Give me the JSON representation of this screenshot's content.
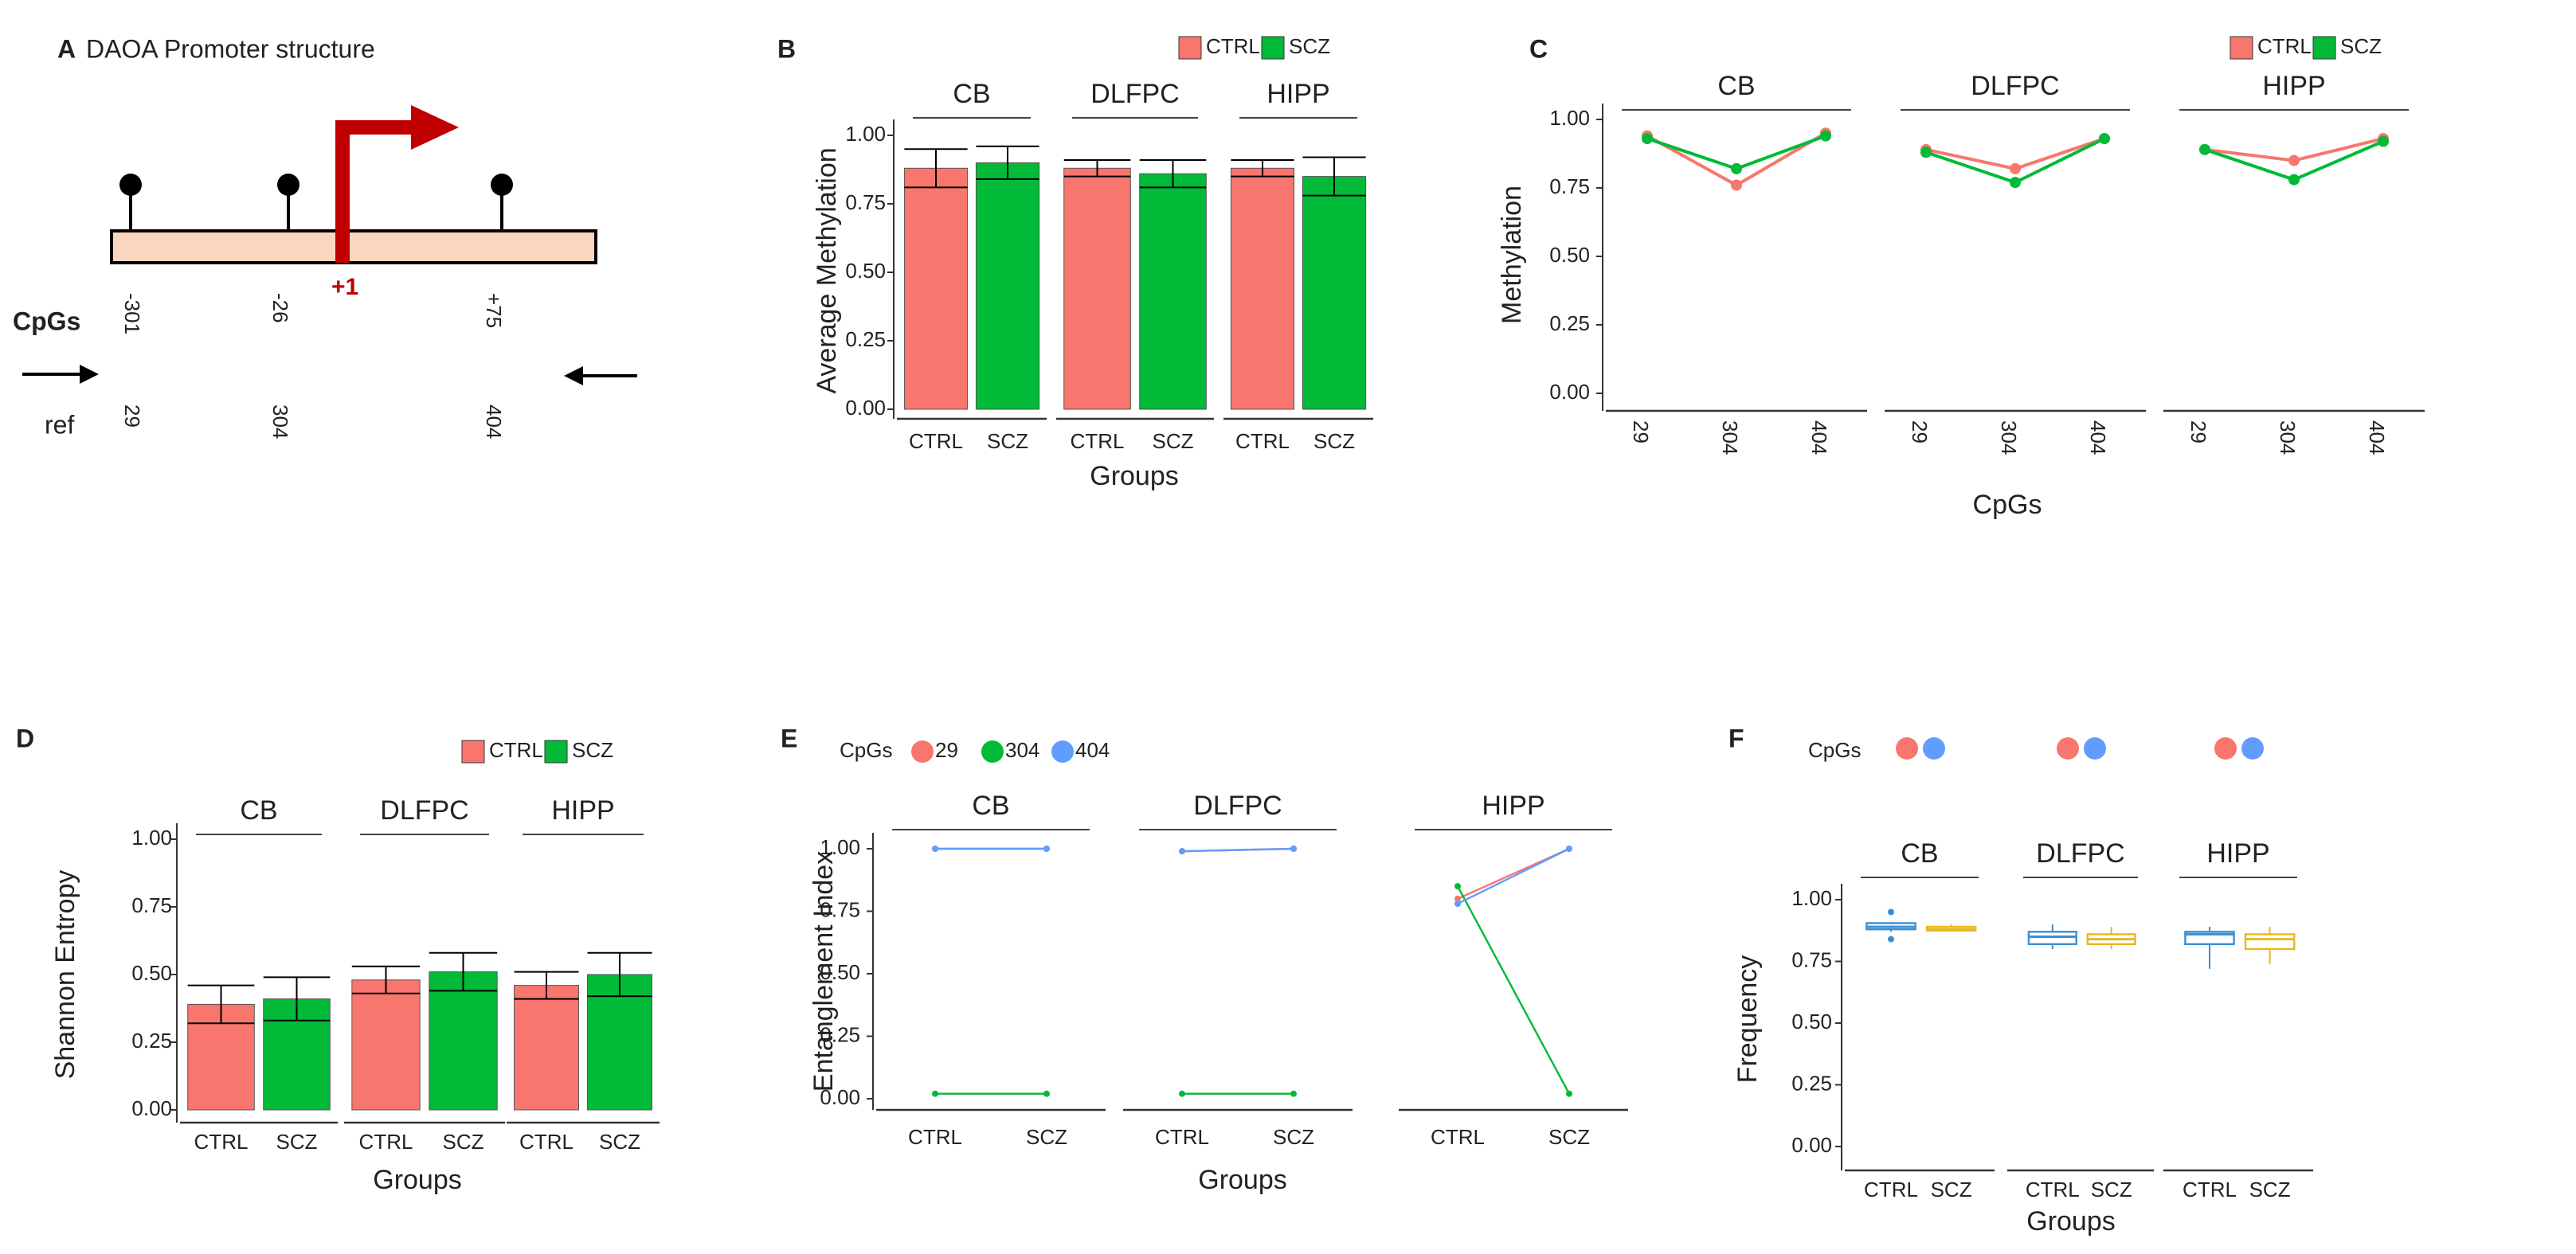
{
  "diagram": {
    "panel": "A",
    "title": "DAOA Promoter structure",
    "tss": "+1",
    "cpg_label": "CpGs",
    "positions": [
      "-301",
      "-26",
      "+75"
    ],
    "ref_label": "ref",
    "refs": [
      "29",
      "304",
      "404"
    ]
  },
  "chart_data": [
    {
      "type": "bar",
      "panel": "B",
      "ylabel": "Average Methylation",
      "xlabel": "Groups",
      "series": [
        {
          "name": "CTRL",
          "color": "#f8766d"
        },
        {
          "name": "SCZ",
          "color": "#00ba38"
        }
      ],
      "ylim": [
        0,
        1
      ],
      "yticks": [
        {
          "value": 0,
          "label": "0.00"
        },
        0.25,
        {
          "value": 0.5,
          "label": "0.50"
        },
        0.75,
        {
          "value": 1,
          "label": "1.00"
        }
      ],
      "facets": [
        {
          "name": "CB",
          "categories": [
            "CTRL",
            "SCZ"
          ],
          "values": [
            0.88,
            0.9
          ],
          "errors": [
            0.07,
            0.06
          ]
        },
        {
          "name": "DLFPC",
          "categories": [
            "CTRL",
            "SCZ"
          ],
          "values": [
            0.88,
            0.86
          ],
          "errors": [
            0.03,
            0.05
          ]
        },
        {
          "name": "HIPP",
          "categories": [
            "CTRL",
            "SCZ"
          ],
          "values": [
            0.88,
            0.85
          ],
          "errors": [
            0.03,
            0.07
          ]
        }
      ]
    },
    {
      "type": "line",
      "panel": "C",
      "ylabel": "Methylation",
      "xlabel": "CpGs",
      "series": [
        {
          "name": "CTRL",
          "color": "#f8766d"
        },
        {
          "name": "SCZ",
          "color": "#00ba38"
        }
      ],
      "ylim": [
        0,
        1
      ],
      "yticks": [
        {
          "value": 0,
          "label": "0.00"
        },
        0.25,
        {
          "value": 0.5,
          "label": "0.50"
        },
        0.75,
        {
          "value": 1,
          "label": "1.00"
        }
      ],
      "facets": [
        {
          "name": "CB",
          "categories": [
            "29",
            "304",
            "404"
          ],
          "values": [
            [
              0.94,
              0.76,
              0.95
            ],
            [
              0.93,
              0.82,
              0.94
            ]
          ]
        },
        {
          "name": "DLFPC",
          "categories": [
            "29",
            "304",
            "404"
          ],
          "values": [
            [
              0.89,
              0.82,
              0.93
            ],
            [
              0.88,
              0.77,
              0.93
            ]
          ]
        },
        {
          "name": "HIPP",
          "categories": [
            "29",
            "304",
            "404"
          ],
          "values": [
            [
              0.89,
              0.85,
              0.93
            ],
            [
              0.89,
              0.78,
              0.92
            ]
          ]
        }
      ]
    },
    {
      "type": "bar",
      "panel": "D",
      "ylabel": "Shannon Entropy",
      "xlabel": "Groups",
      "series": [
        {
          "name": "CTRL",
          "color": "#f8766d"
        },
        {
          "name": "SCZ",
          "color": "#00ba38"
        }
      ],
      "ylim": [
        0,
        1
      ],
      "yticks": [
        {
          "value": 0,
          "label": "0.00"
        },
        0.25,
        {
          "value": 0.5,
          "label": "0.50"
        },
        0.75,
        {
          "value": 1,
          "label": "1.00"
        }
      ],
      "facets": [
        {
          "name": "CB",
          "categories": [
            "CTRL",
            "SCZ"
          ],
          "values": [
            0.39,
            0.41
          ],
          "errors": [
            0.07,
            0.08
          ]
        },
        {
          "name": "DLFPC",
          "categories": [
            "CTRL",
            "SCZ"
          ],
          "values": [
            0.48,
            0.51
          ],
          "errors": [
            0.05,
            0.07
          ]
        },
        {
          "name": "HIPP",
          "categories": [
            "CTRL",
            "SCZ"
          ],
          "values": [
            0.46,
            0.5
          ],
          "errors": [
            0.05,
            0.08
          ]
        }
      ]
    },
    {
      "type": "line",
      "panel": "E",
      "ylabel": "Entanglement Index",
      "xlabel": "Groups",
      "legend_title": "CpGs",
      "series": [
        {
          "name": "29",
          "color": "#f8766d"
        },
        {
          "name": "304",
          "color": "#00ba38"
        },
        {
          "name": "404",
          "color": "#619cff"
        }
      ],
      "ylim": [
        0,
        1
      ],
      "yticks": [
        {
          "value": 0,
          "label": "0.00"
        },
        0.25,
        {
          "value": 0.5,
          "label": "0.50"
        },
        0.75,
        {
          "value": 1,
          "label": "1.00"
        }
      ],
      "facets": [
        {
          "name": "CB",
          "categories": [
            "CTRL",
            "SCZ"
          ],
          "values": [
            [
              1,
              1
            ],
            [
              0.02,
              0.02
            ],
            [
              1,
              1
            ]
          ]
        },
        {
          "name": "DLFPC",
          "categories": [
            "CTRL",
            "SCZ"
          ],
          "values": [
            [
              0.99,
              1
            ],
            [
              0.02,
              0.02
            ],
            [
              0.99,
              1
            ]
          ]
        },
        {
          "name": "HIPP",
          "categories": [
            "CTRL",
            "SCZ"
          ],
          "values": [
            [
              0.8,
              1
            ],
            [
              0.85,
              0.02
            ],
            [
              0.78,
              1
            ]
          ]
        }
      ]
    },
    {
      "type": "box",
      "panel": "F",
      "ylabel": "Frequency",
      "xlabel": "Groups",
      "legend_title": "CpGs",
      "legend_colors": [
        "#f8766d",
        "#619cff"
      ],
      "box_colors": [
        "#3a8fd4",
        "#e8b820"
      ],
      "ylim": [
        0,
        1
      ],
      "yticks": [
        {
          "value": 0,
          "label": "0.00"
        },
        0.25,
        {
          "value": 0.5,
          "label": "0.50"
        },
        0.75,
        {
          "value": 1,
          "label": "1.00"
        }
      ],
      "facets": [
        {
          "name": "CB",
          "categories": [
            "CTRL",
            "SCZ"
          ],
          "boxes": [
            {
              "min": 0.87,
              "q1": 0.88,
              "median": 0.89,
              "q3": 0.905,
              "max": 0.91,
              "outliers": [
                0.95,
                0.84
              ]
            },
            {
              "min": 0.87,
              "q1": 0.875,
              "median": 0.88,
              "q3": 0.89,
              "max": 0.9,
              "outliers": []
            }
          ]
        },
        {
          "name": "DLFPC",
          "categories": [
            "CTRL",
            "SCZ"
          ],
          "boxes": [
            {
              "min": 0.8,
              "q1": 0.82,
              "median": 0.85,
              "q3": 0.87,
              "max": 0.9,
              "outliers": []
            },
            {
              "min": 0.8,
              "q1": 0.82,
              "median": 0.84,
              "q3": 0.86,
              "max": 0.89,
              "outliers": []
            }
          ]
        },
        {
          "name": "HIPP",
          "categories": [
            "CTRL",
            "SCZ"
          ],
          "boxes": [
            {
              "min": 0.72,
              "q1": 0.82,
              "median": 0.86,
              "q3": 0.87,
              "max": 0.89,
              "outliers": []
            },
            {
              "min": 0.74,
              "q1": 0.8,
              "median": 0.84,
              "q3": 0.86,
              "max": 0.89,
              "outliers": []
            }
          ]
        }
      ]
    }
  ]
}
